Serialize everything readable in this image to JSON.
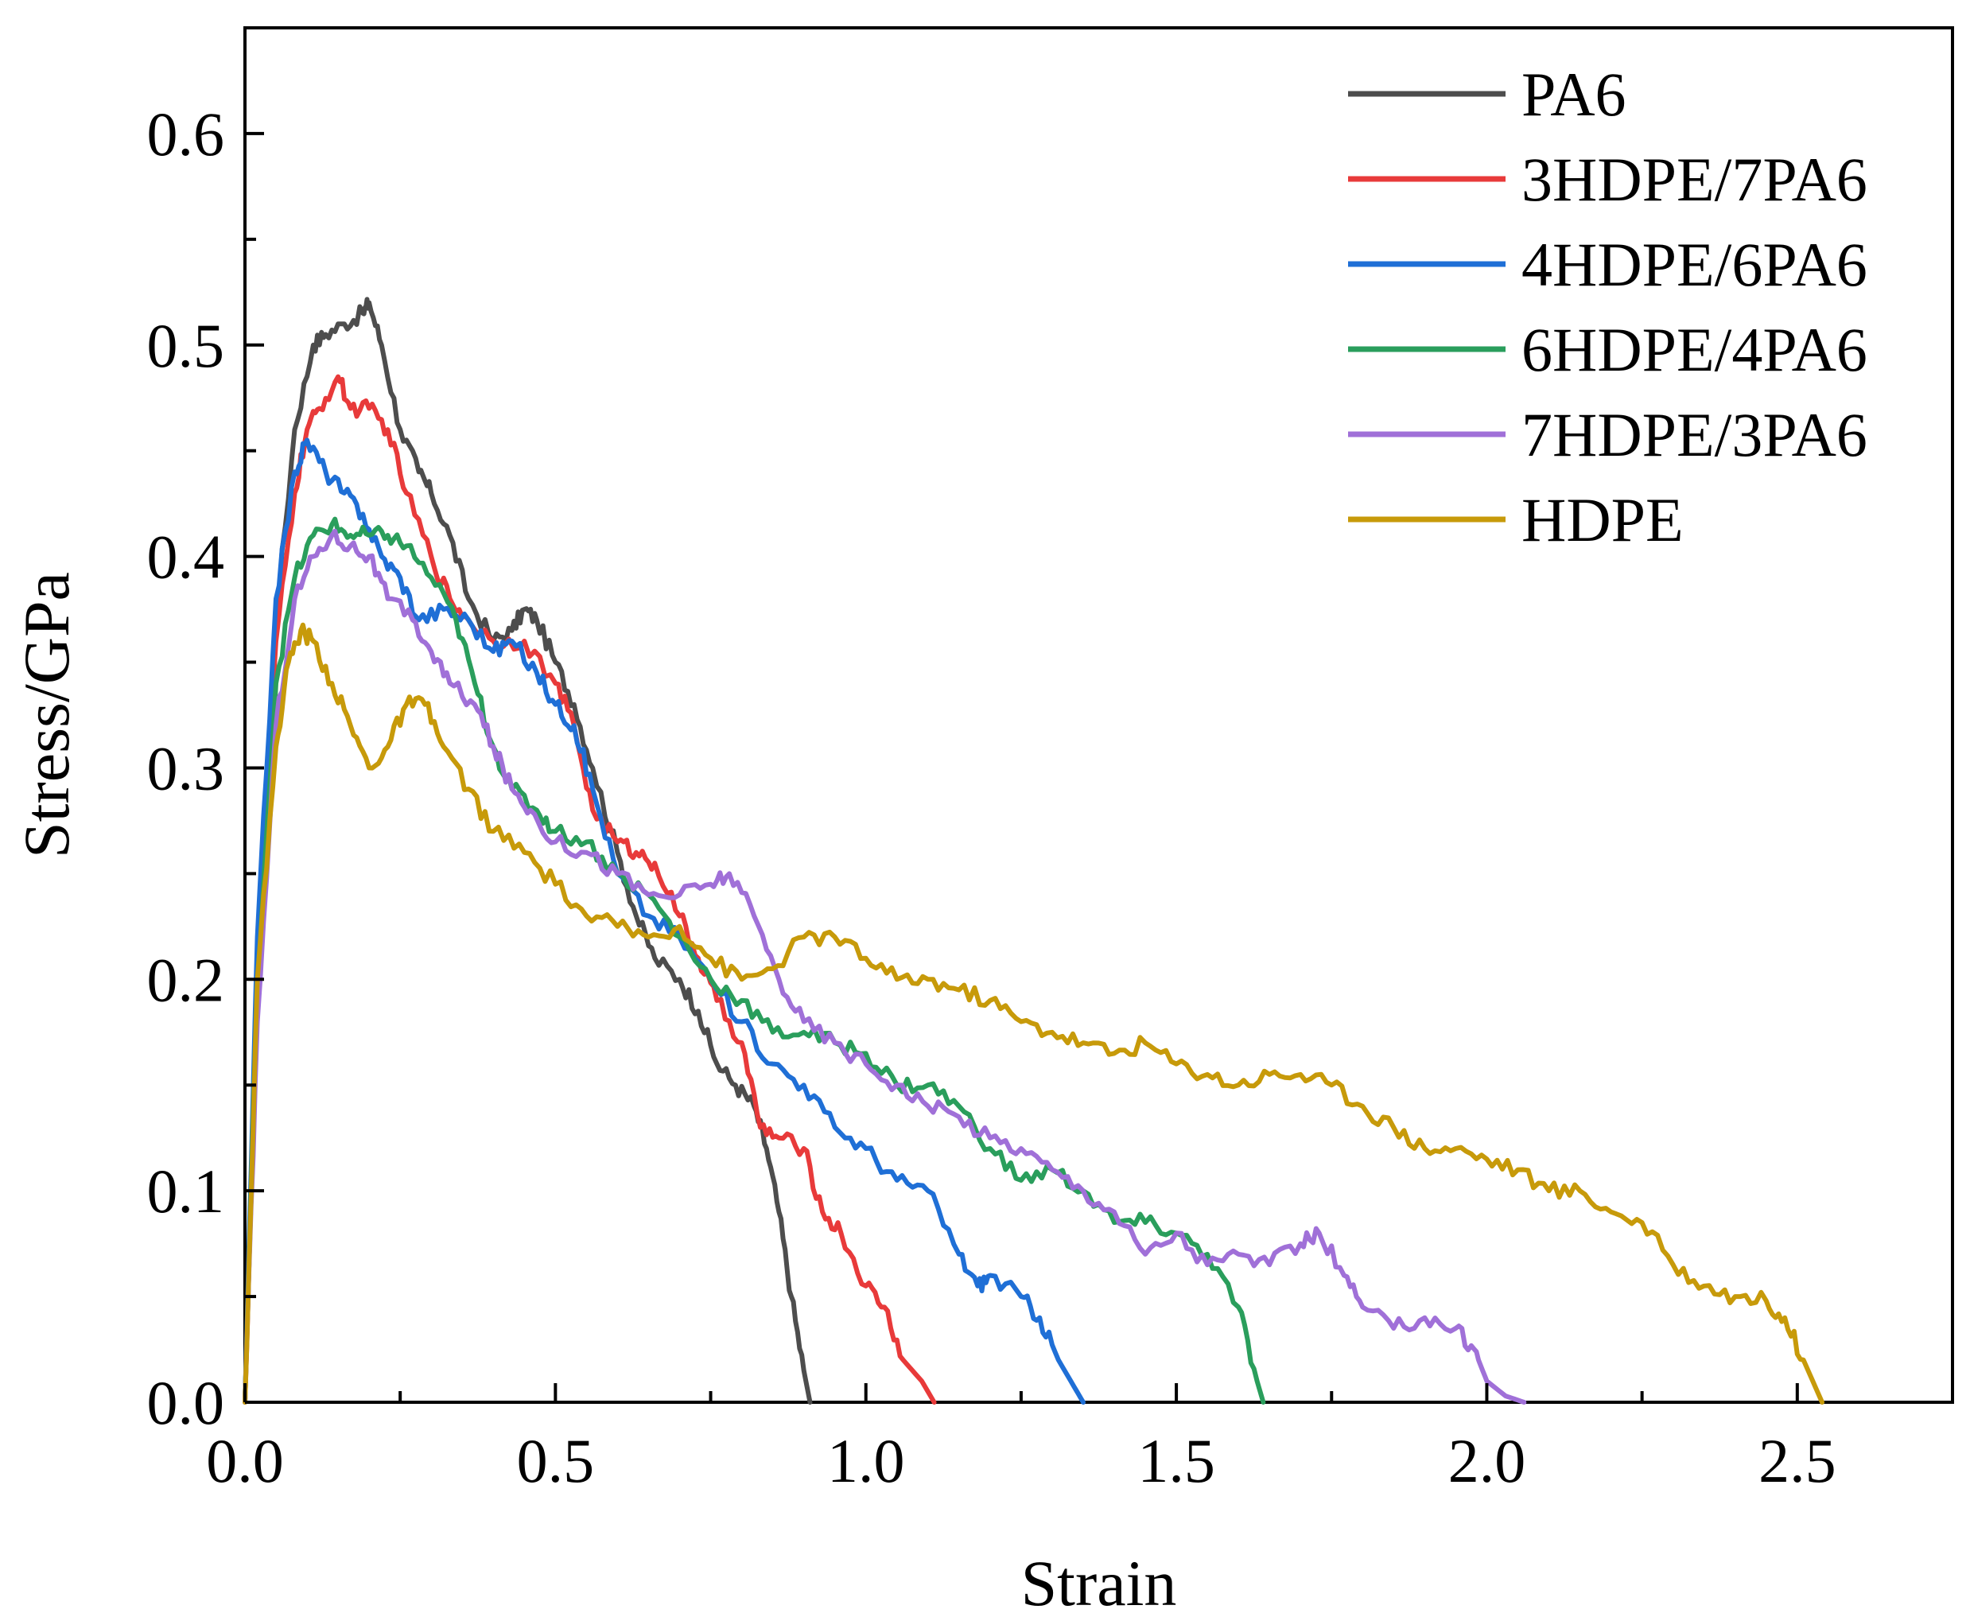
{
  "chart_data": {
    "type": "line",
    "title": "",
    "xlabel": "Strain",
    "ylabel": "Stress/GPa",
    "xlim": [
      0,
      2.75
    ],
    "ylim": [
      0,
      0.65
    ],
    "xticks": [
      0.0,
      0.5,
      1.0,
      1.5,
      2.0,
      2.5
    ],
    "xtick_labels": [
      "0.0",
      "0.5",
      "1.0",
      "1.5",
      "2.0",
      "2.5"
    ],
    "yticks": [
      0.0,
      0.1,
      0.2,
      0.3,
      0.4,
      0.5,
      0.6
    ],
    "ytick_labels": [
      "0.0",
      "0.1",
      "0.2",
      "0.3",
      "0.4",
      "0.5",
      "0.6"
    ],
    "grid": false,
    "legend_position": "top-right",
    "series": [
      {
        "name": "PA6",
        "color": "#4d4d4d",
        "x": [
          0.0,
          0.02,
          0.05,
          0.08,
          0.11,
          0.13,
          0.16,
          0.19,
          0.2,
          0.22,
          0.25,
          0.28,
          0.3,
          0.33,
          0.36,
          0.4,
          0.43,
          0.45,
          0.47,
          0.5,
          0.53,
          0.56,
          0.6,
          0.63,
          0.66,
          0.7,
          0.73,
          0.76,
          0.79,
          0.82,
          0.84,
          0.86,
          0.88,
          0.9,
          0.91
        ],
        "y": [
          0.0,
          0.2,
          0.37,
          0.46,
          0.5,
          0.505,
          0.51,
          0.515,
          0.52,
          0.5,
          0.46,
          0.44,
          0.43,
          0.41,
          0.38,
          0.36,
          0.365,
          0.375,
          0.37,
          0.35,
          0.33,
          0.3,
          0.26,
          0.23,
          0.21,
          0.2,
          0.185,
          0.16,
          0.15,
          0.14,
          0.12,
          0.09,
          0.05,
          0.015,
          0.0
        ]
      },
      {
        "name": "3HDPE/7PA6",
        "color": "#e83a3a",
        "x": [
          0.0,
          0.02,
          0.05,
          0.08,
          0.1,
          0.12,
          0.15,
          0.17,
          0.2,
          0.23,
          0.26,
          0.3,
          0.33,
          0.36,
          0.4,
          0.45,
          0.5,
          0.53,
          0.56,
          0.6,
          0.63,
          0.66,
          0.7,
          0.73,
          0.76,
          0.8,
          0.83,
          0.86,
          0.9,
          0.93,
          0.96,
          1.0,
          1.03,
          1.06,
          1.09,
          1.11
        ],
        "y": [
          0.0,
          0.2,
          0.36,
          0.43,
          0.46,
          0.47,
          0.485,
          0.47,
          0.47,
          0.46,
          0.43,
          0.4,
          0.38,
          0.37,
          0.36,
          0.36,
          0.34,
          0.32,
          0.28,
          0.265,
          0.26,
          0.255,
          0.23,
          0.21,
          0.19,
          0.17,
          0.13,
          0.125,
          0.12,
          0.09,
          0.08,
          0.055,
          0.045,
          0.02,
          0.01,
          0.0
        ]
      },
      {
        "name": "4HDPE/6PA6",
        "color": "#1f6fd6",
        "x": [
          0.0,
          0.02,
          0.05,
          0.08,
          0.1,
          0.13,
          0.16,
          0.19,
          0.22,
          0.25,
          0.28,
          0.32,
          0.36,
          0.4,
          0.43,
          0.47,
          0.5,
          0.53,
          0.56,
          0.6,
          0.65,
          0.7,
          0.75,
          0.8,
          0.85,
          0.9,
          0.95,
          1.0,
          1.05,
          1.1,
          1.15,
          1.18,
          1.2,
          1.25,
          1.28,
          1.31,
          1.34,
          1.35
        ],
        "y": [
          0.0,
          0.22,
          0.38,
          0.44,
          0.455,
          0.44,
          0.43,
          0.42,
          0.4,
          0.39,
          0.37,
          0.375,
          0.37,
          0.355,
          0.36,
          0.345,
          0.33,
          0.32,
          0.29,
          0.25,
          0.23,
          0.22,
          0.2,
          0.18,
          0.16,
          0.15,
          0.13,
          0.12,
          0.105,
          0.1,
          0.07,
          0.055,
          0.06,
          0.05,
          0.04,
          0.02,
          0.005,
          0.0
        ]
      },
      {
        "name": "6HDPE/4PA6",
        "color": "#2a9e5c",
        "x": [
          0.0,
          0.02,
          0.05,
          0.08,
          0.11,
          0.14,
          0.17,
          0.2,
          0.23,
          0.26,
          0.3,
          0.34,
          0.37,
          0.4,
          0.43,
          0.47,
          0.5,
          0.55,
          0.6,
          0.65,
          0.7,
          0.75,
          0.8,
          0.85,
          0.9,
          0.95,
          1.0,
          1.05,
          1.1,
          1.15,
          1.2,
          1.25,
          1.3,
          1.35,
          1.4,
          1.45,
          1.5,
          1.55,
          1.6,
          1.63,
          1.64
        ],
        "y": [
          0.0,
          0.2,
          0.34,
          0.39,
          0.41,
          0.415,
          0.41,
          0.41,
          0.41,
          0.405,
          0.39,
          0.37,
          0.34,
          0.31,
          0.29,
          0.28,
          0.27,
          0.265,
          0.25,
          0.24,
          0.22,
          0.2,
          0.19,
          0.175,
          0.175,
          0.17,
          0.165,
          0.15,
          0.15,
          0.14,
          0.12,
          0.105,
          0.11,
          0.1,
          0.085,
          0.085,
          0.08,
          0.07,
          0.045,
          0.01,
          0.0
        ]
      },
      {
        "name": "7HDPE/3PA6",
        "color": "#a070d8",
        "x": [
          0.0,
          0.02,
          0.05,
          0.08,
          0.11,
          0.14,
          0.17,
          0.2,
          0.23,
          0.27,
          0.3,
          0.33,
          0.37,
          0.4,
          0.43,
          0.46,
          0.5,
          0.55,
          0.6,
          0.65,
          0.7,
          0.75,
          0.78,
          0.82,
          0.86,
          0.9,
          0.95,
          1.0,
          1.05,
          1.1,
          1.15,
          1.2,
          1.25,
          1.3,
          1.35,
          1.4,
          1.45,
          1.5,
          1.55,
          1.6,
          1.65,
          1.7,
          1.73,
          1.77,
          1.8,
          1.85,
          1.9,
          1.95,
          1.98,
          2.0,
          2.03,
          2.06
        ],
        "y": [
          0.0,
          0.18,
          0.32,
          0.38,
          0.4,
          0.41,
          0.405,
          0.4,
          0.38,
          0.37,
          0.355,
          0.34,
          0.33,
          0.31,
          0.29,
          0.28,
          0.265,
          0.26,
          0.25,
          0.24,
          0.24,
          0.245,
          0.25,
          0.23,
          0.2,
          0.18,
          0.17,
          0.16,
          0.15,
          0.14,
          0.135,
          0.125,
          0.12,
          0.11,
          0.1,
          0.09,
          0.07,
          0.08,
          0.065,
          0.07,
          0.065,
          0.075,
          0.08,
          0.06,
          0.045,
          0.035,
          0.04,
          0.035,
          0.025,
          0.01,
          0.003,
          0.0
        ]
      },
      {
        "name": "HDPE",
        "color": "#c79a0a",
        "x": [
          0.0,
          0.02,
          0.05,
          0.07,
          0.09,
          0.11,
          0.14,
          0.17,
          0.2,
          0.23,
          0.26,
          0.29,
          0.32,
          0.36,
          0.4,
          0.45,
          0.5,
          0.55,
          0.6,
          0.65,
          0.7,
          0.75,
          0.8,
          0.85,
          0.9,
          0.95,
          1.0,
          1.05,
          1.1,
          1.15,
          1.2,
          1.25,
          1.3,
          1.35,
          1.4,
          1.45,
          1.5,
          1.55,
          1.6,
          1.65,
          1.7,
          1.75,
          1.8,
          1.85,
          1.9,
          1.95,
          2.0,
          2.05,
          2.1,
          2.15,
          2.2,
          2.25,
          2.3,
          2.35,
          2.4,
          2.45,
          2.48,
          2.51,
          2.54
        ],
        "y": [
          0.0,
          0.2,
          0.31,
          0.35,
          0.365,
          0.36,
          0.34,
          0.32,
          0.3,
          0.31,
          0.33,
          0.33,
          0.31,
          0.29,
          0.27,
          0.26,
          0.245,
          0.23,
          0.225,
          0.22,
          0.225,
          0.21,
          0.2,
          0.205,
          0.22,
          0.22,
          0.21,
          0.2,
          0.2,
          0.195,
          0.19,
          0.18,
          0.175,
          0.17,
          0.165,
          0.17,
          0.16,
          0.155,
          0.15,
          0.155,
          0.155,
          0.15,
          0.14,
          0.13,
          0.12,
          0.12,
          0.115,
          0.11,
          0.1,
          0.1,
          0.09,
          0.085,
          0.065,
          0.055,
          0.05,
          0.048,
          0.04,
          0.02,
          0.0
        ]
      }
    ]
  }
}
